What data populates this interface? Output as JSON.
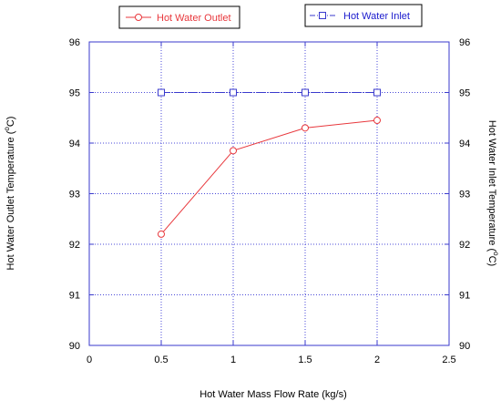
{
  "chart_data": {
    "type": "line",
    "xlabel": "Hot Water Mass Flow Rate (kg/s)",
    "ylabel_left": "Hot  Water Outlet Temperature (",
    "ylabel_right": "Hot  Water Inlet Temperature (",
    "ylabel_unit_sup": "o",
    "ylabel_unit_tail": "C)",
    "xlim": [
      0,
      2.5
    ],
    "ylim": [
      90,
      96
    ],
    "x_ticks": [
      "0",
      "0.5",
      "1",
      "1.5",
      "2",
      "2.5"
    ],
    "y_ticks": [
      "90",
      "91",
      "92",
      "93",
      "94",
      "95",
      "96"
    ],
    "grid": true,
    "legend_placement": "top",
    "series": [
      {
        "name": "Hot Water Outlet",
        "color": "#e8383d",
        "marker": "circle",
        "x": [
          0.5,
          1,
          1.5,
          2
        ],
        "y": [
          92.2,
          93.85,
          94.3,
          94.45
        ]
      },
      {
        "name": "Hot Water Inlet",
        "color": "#3a3acd",
        "marker": "square",
        "x": [
          0.5,
          1,
          1.5,
          2
        ],
        "y": [
          95,
          95,
          95,
          95
        ]
      }
    ]
  }
}
